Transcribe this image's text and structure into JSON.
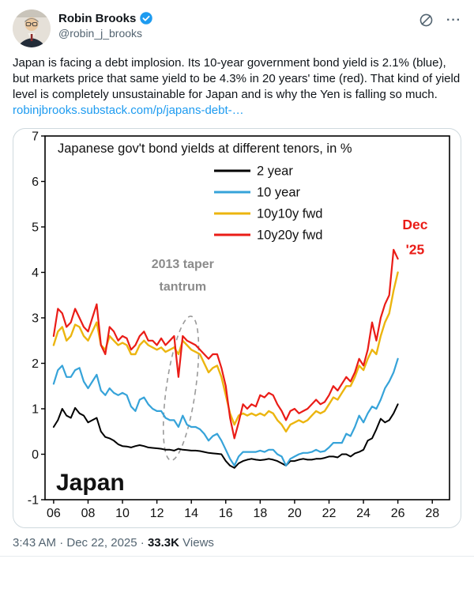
{
  "header": {
    "name": "Robin Brooks",
    "handle": "@robin_j_brooks",
    "more_icon": "···"
  },
  "tweet": {
    "body": "Japan is facing a debt implosion. Its 10-year government bond yield is 2.1% (blue), but markets price that same yield to be 4.3% in 20 years' time (red). That kind of yield level is completely unsustainable for Japan and is why the Yen is falling so much.",
    "link": "robinjbrooks.substack.com/p/japans-debt-…"
  },
  "footer": {
    "meta": "3:43 AM · Dec 22, 2025",
    "sep": "·",
    "views_count": "33.3K",
    "views_label": "Views"
  },
  "colors": {
    "accent_blue": "#1d9bf0",
    "series_black": "#000000",
    "series_blue": "#36a3d9",
    "series_yellow": "#ecb50f",
    "series_red": "#ea1c17",
    "annotation_gray": "#8b8b8b"
  },
  "chart_data": {
    "type": "line",
    "title": "Japanese gov't bond yields at different tenors, in %",
    "xlim": [
      2005.5,
      2029.0
    ],
    "ylim": [
      -1,
      7
    ],
    "y_ticks": [
      -1,
      0,
      1,
      2,
      3,
      4,
      5,
      6,
      7
    ],
    "x_ticks": [
      2006,
      2008,
      2010,
      2012,
      2014,
      2016,
      2018,
      2020,
      2022,
      2024,
      2026,
      2028
    ],
    "x_tick_labels": [
      "06",
      "08",
      "10",
      "12",
      "14",
      "16",
      "18",
      "20",
      "22",
      "24",
      "26",
      "28"
    ],
    "x_start": 2006,
    "x_step": 0.25,
    "series": [
      {
        "name": "2 year",
        "color": "#000000",
        "width": 2.0,
        "values": [
          0.6,
          0.75,
          1.0,
          0.85,
          0.8,
          1.02,
          0.9,
          0.85,
          0.7,
          0.75,
          0.8,
          0.5,
          0.38,
          0.35,
          0.3,
          0.22,
          0.18,
          0.17,
          0.15,
          0.18,
          0.2,
          0.18,
          0.15,
          0.14,
          0.13,
          0.12,
          0.1,
          0.1,
          0.08,
          0.12,
          0.1,
          0.09,
          0.08,
          0.08,
          0.07,
          0.05,
          0.03,
          0.02,
          0.01,
          0.0,
          -0.15,
          -0.25,
          -0.3,
          -0.2,
          -0.15,
          -0.12,
          -0.1,
          -0.12,
          -0.13,
          -0.12,
          -0.1,
          -0.12,
          -0.15,
          -0.2,
          -0.25,
          -0.15,
          -0.15,
          -0.12,
          -0.1,
          -0.12,
          -0.12,
          -0.1,
          -0.1,
          -0.08,
          -0.05,
          -0.05,
          -0.07,
          0.0,
          0.0,
          -0.05,
          0.02,
          0.05,
          0.1,
          0.3,
          0.35,
          0.55,
          0.78,
          0.7,
          0.75,
          0.9,
          1.1
        ]
      },
      {
        "name": "10 year",
        "color": "#36a3d9",
        "width": 2.2,
        "values": [
          1.55,
          1.85,
          1.95,
          1.7,
          1.7,
          1.85,
          1.9,
          1.6,
          1.45,
          1.6,
          1.75,
          1.4,
          1.3,
          1.45,
          1.35,
          1.3,
          1.35,
          1.3,
          1.05,
          0.95,
          1.2,
          1.25,
          1.1,
          1.0,
          0.95,
          0.95,
          0.8,
          0.75,
          0.75,
          0.6,
          0.85,
          0.65,
          0.6,
          0.6,
          0.55,
          0.45,
          0.3,
          0.4,
          0.45,
          0.3,
          0.1,
          -0.1,
          -0.25,
          -0.05,
          0.05,
          0.05,
          0.05,
          0.05,
          0.08,
          0.05,
          0.1,
          0.1,
          0.0,
          -0.05,
          -0.25,
          -0.1,
          -0.05,
          0.0,
          0.03,
          0.03,
          0.05,
          0.1,
          0.05,
          0.07,
          0.15,
          0.25,
          0.25,
          0.25,
          0.45,
          0.4,
          0.6,
          0.85,
          0.7,
          0.9,
          1.05,
          1.0,
          1.2,
          1.45,
          1.6,
          1.8,
          2.1
        ]
      },
      {
        "name": "10y10y fwd",
        "color": "#ecb50f",
        "width": 2.4,
        "values": [
          2.4,
          2.7,
          2.8,
          2.5,
          2.6,
          2.85,
          2.8,
          2.6,
          2.5,
          2.7,
          2.9,
          2.4,
          2.3,
          2.6,
          2.5,
          2.4,
          2.45,
          2.4,
          2.2,
          2.2,
          2.4,
          2.5,
          2.4,
          2.35,
          2.3,
          2.35,
          2.25,
          2.3,
          2.35,
          2.2,
          2.5,
          2.4,
          2.3,
          2.25,
          2.2,
          2.0,
          1.8,
          1.9,
          1.95,
          1.7,
          1.3,
          0.9,
          0.65,
          0.85,
          0.9,
          0.85,
          0.9,
          0.85,
          0.9,
          0.85,
          0.95,
          0.9,
          0.75,
          0.65,
          0.5,
          0.65,
          0.7,
          0.75,
          0.7,
          0.75,
          0.85,
          0.95,
          0.9,
          0.95,
          1.1,
          1.25,
          1.2,
          1.35,
          1.5,
          1.5,
          1.7,
          1.95,
          1.85,
          2.1,
          2.3,
          2.2,
          2.6,
          2.9,
          3.1,
          3.6,
          4.0
        ]
      },
      {
        "name": "10y20y fwd",
        "color": "#ea1c17",
        "width": 2.2,
        "values": [
          2.6,
          3.2,
          3.1,
          2.8,
          2.9,
          3.2,
          3.0,
          2.8,
          2.7,
          3.0,
          3.3,
          2.4,
          2.2,
          2.8,
          2.7,
          2.5,
          2.6,
          2.55,
          2.3,
          2.4,
          2.6,
          2.7,
          2.5,
          2.5,
          2.4,
          2.55,
          2.4,
          2.5,
          2.6,
          1.7,
          2.6,
          2.5,
          2.45,
          2.4,
          2.3,
          2.2,
          2.1,
          2.2,
          2.2,
          1.9,
          1.5,
          0.8,
          0.35,
          0.7,
          1.1,
          1.0,
          1.1,
          1.05,
          1.3,
          1.25,
          1.35,
          1.3,
          1.1,
          0.95,
          0.75,
          0.95,
          1.0,
          0.9,
          0.95,
          1.0,
          1.1,
          1.2,
          1.1,
          1.15,
          1.3,
          1.5,
          1.4,
          1.55,
          1.7,
          1.6,
          1.8,
          2.1,
          1.95,
          2.3,
          2.9,
          2.5,
          3.0,
          3.3,
          3.5,
          4.5,
          4.3
        ]
      }
    ],
    "legend_position": "top-center",
    "grid": false,
    "annotations": {
      "taper_label": [
        "2013 taper",
        "tantrum"
      ],
      "taper_xy": [
        2013.5,
        4.1
      ],
      "ellipse": {
        "cx": 2013.4,
        "cy": 1.45,
        "rx": 0.85,
        "ry": 1.6,
        "rotate": 8
      },
      "endpoint_label": [
        "Dec",
        "'25"
      ],
      "endpoint_xy": [
        2027.0,
        4.95
      ],
      "endpoint_color": "#ea1c17",
      "corner_label": "Japan"
    }
  }
}
